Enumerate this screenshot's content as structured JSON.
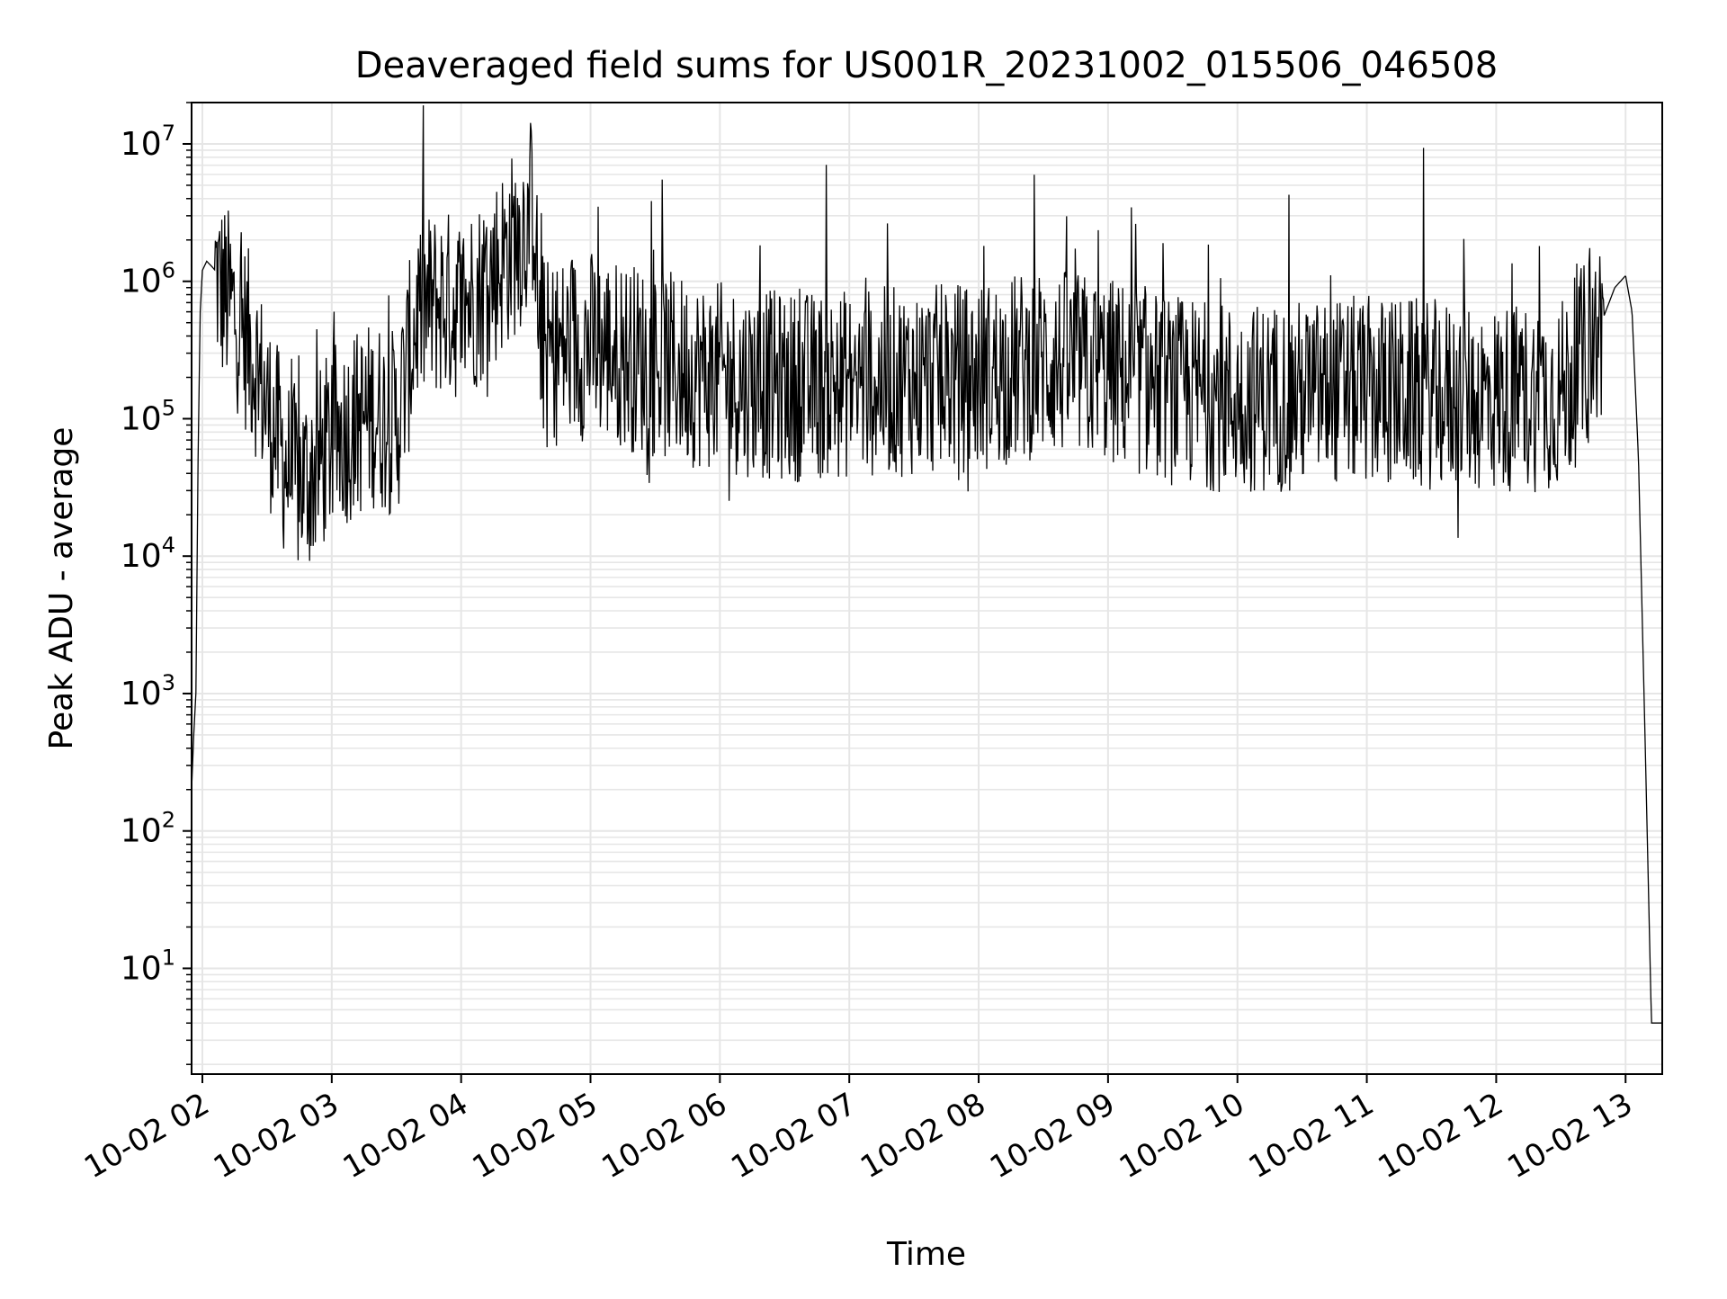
{
  "chart_data": {
    "type": "line",
    "title": "Deaveraged field sums for US001R_20231002_015506_046508",
    "xlabel": "Time",
    "ylabel": "Peak ADU - average",
    "yscale": "log",
    "ylim": [
      1.7,
      20000000
    ],
    "xlim": [
      "2023-10-02T01:55:00",
      "2023-10-02T13:17:00"
    ],
    "grid": true,
    "grid_minor": true,
    "line_color": "#000000",
    "grid_color": "#e6e6e6",
    "x_ticks": [
      {
        "time": "2023-10-02T02:00",
        "label": "10-02 02"
      },
      {
        "time": "2023-10-02T03:00",
        "label": "10-02 03"
      },
      {
        "time": "2023-10-02T04:00",
        "label": "10-02 04"
      },
      {
        "time": "2023-10-02T05:00",
        "label": "10-02 05"
      },
      {
        "time": "2023-10-02T06:00",
        "label": "10-02 06"
      },
      {
        "time": "2023-10-02T07:00",
        "label": "10-02 07"
      },
      {
        "time": "2023-10-02T08:00",
        "label": "10-02 08"
      },
      {
        "time": "2023-10-02T09:00",
        "label": "10-02 09"
      },
      {
        "time": "2023-10-02T10:00",
        "label": "10-02 10"
      },
      {
        "time": "2023-10-02T11:00",
        "label": "10-02 11"
      },
      {
        "time": "2023-10-02T12:00",
        "label": "10-02 12"
      },
      {
        "time": "2023-10-02T13:00",
        "label": "10-02 13"
      }
    ],
    "y_ticks": [
      {
        "value": 10,
        "base": "10",
        "exp": "1"
      },
      {
        "value": 100,
        "base": "10",
        "exp": "2"
      },
      {
        "value": 1000,
        "base": "10",
        "exp": "3"
      },
      {
        "value": 10000,
        "base": "10",
        "exp": "4"
      },
      {
        "value": 100000,
        "base": "10",
        "exp": "5"
      },
      {
        "value": 1000000,
        "base": "10",
        "exp": "6"
      },
      {
        "value": 10000000,
        "base": "10",
        "exp": "7"
      }
    ],
    "series": [
      {
        "x": [
          "2023-10-02T01:55",
          "2023-10-02T01:56",
          "2023-10-02T01:57",
          "2023-10-02T01:58",
          "2023-10-02T01:59",
          "2023-10-02T02:00",
          "2023-10-02T02:02",
          "2023-10-02T02:04",
          "2023-10-02T02:06",
          "2023-10-02T02:08",
          "2023-10-02T02:10",
          "2023-10-02T02:15",
          "2023-10-02T02:20",
          "2023-10-02T02:25",
          "2023-10-02T02:30",
          "2023-10-02T02:35",
          "2023-10-02T02:40",
          "2023-10-02T02:45",
          "2023-10-02T02:50",
          "2023-10-02T02:55",
          "2023-10-02T03:00",
          "2023-10-02T03:10",
          "2023-10-02T03:20",
          "2023-10-02T03:30",
          "2023-10-02T03:40",
          "2023-10-02T03:50",
          "2023-10-02T04:00",
          "2023-10-02T04:10",
          "2023-10-02T04:20",
          "2023-10-02T04:30",
          "2023-10-02T04:34",
          "2023-10-02T04:36",
          "2023-10-02T04:40",
          "2023-10-02T05:00",
          "2023-10-02T05:30",
          "2023-10-02T06:00",
          "2023-10-02T06:30",
          "2023-10-02T07:00",
          "2023-10-02T07:30",
          "2023-10-02T08:00",
          "2023-10-02T08:30",
          "2023-10-02T09:00",
          "2023-10-02T09:30",
          "2023-10-02T10:00",
          "2023-10-02T10:30",
          "2023-10-02T11:00",
          "2023-10-02T11:30",
          "2023-10-02T12:00",
          "2023-10-02T12:30",
          "2023-10-02T12:45",
          "2023-10-02T12:55",
          "2023-10-02T13:00",
          "2023-10-02T13:03",
          "2023-10-02T13:06",
          "2023-10-02T13:09",
          "2023-10-02T13:12",
          "2023-10-02T13:13",
          "2023-10-02T13:17"
        ],
        "y": [
          200,
          500,
          1000,
          50000,
          600000,
          1200000,
          1400000,
          1300000,
          1200000,
          900000,
          800000,
          600000,
          400000,
          250000,
          120000,
          70000,
          40000,
          35000,
          38000,
          50000,
          70000,
          90000,
          110000,
          90000,
          600000,
          700000,
          650000,
          900000,
          1500000,
          2500000,
          4000000,
          400000,
          300000,
          350000,
          250000,
          200000,
          170000,
          180000,
          190000,
          200000,
          260000,
          220000,
          160000,
          140000,
          150000,
          160000,
          150000,
          140000,
          150000,
          350000,
          900000,
          1100000,
          600000,
          50000,
          500,
          4,
          4,
          4
        ]
      }
    ]
  }
}
